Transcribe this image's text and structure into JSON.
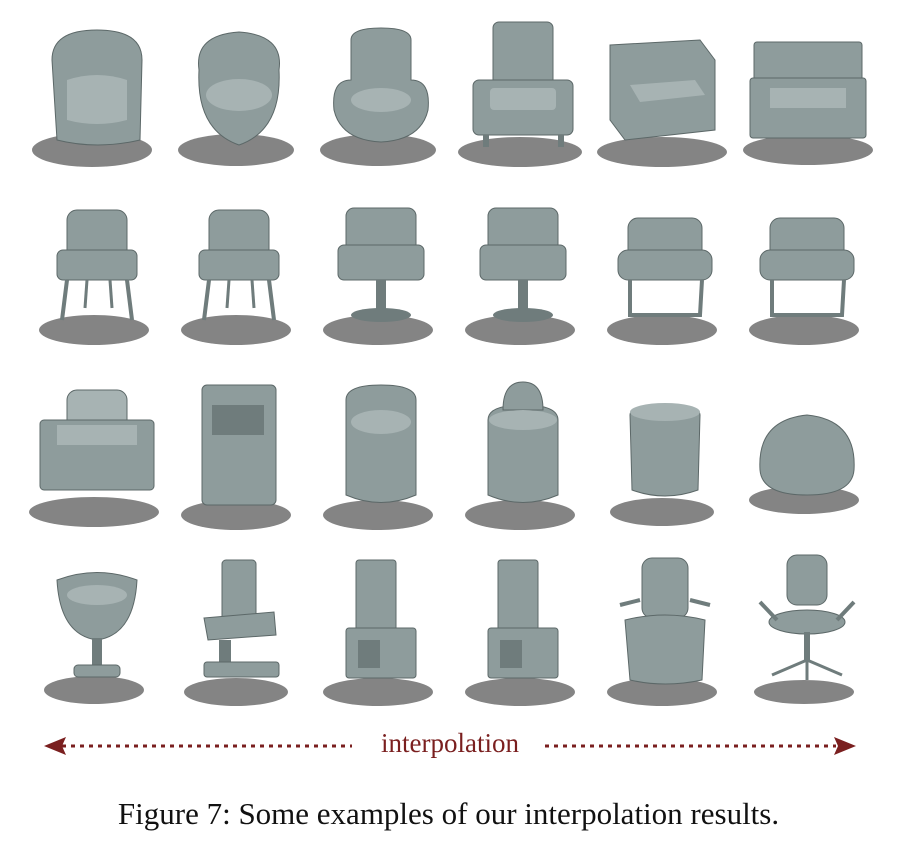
{
  "figure": {
    "rows": [
      {
        "name": "row-1",
        "items": [
          "tub-armchair",
          "round-bucket-chair",
          "rounded-armchair",
          "cushioned-armchair",
          "boxy-armchair",
          "block-armchair"
        ]
      },
      {
        "name": "row-2",
        "items": [
          "leg-armchair",
          "leg-armchair-variant",
          "pedestal-armchair",
          "pedestal-armchair-variant",
          "cantilever-armchair",
          "cantilever-armchair-variant"
        ]
      },
      {
        "name": "row-3",
        "items": [
          "cushion-sofa-chair",
          "box-chair",
          "barrel-chair",
          "drum-chair",
          "ottoman-pouf",
          "bean-bag"
        ]
      },
      {
        "name": "row-4",
        "items": [
          "pedestal-bucket-chair",
          "slab-chair",
          "cube-base-chair",
          "cube-base-chair-variant",
          "office-chair-blend",
          "office-chair"
        ]
      }
    ],
    "colors": {
      "chair": "#8e9c9c",
      "shadow": "#6f6f6f",
      "arrow": "#7a1f1f"
    },
    "interpolation_label": "interpolation",
    "caption": "Figure 7: Some examples of our interpolation results."
  }
}
